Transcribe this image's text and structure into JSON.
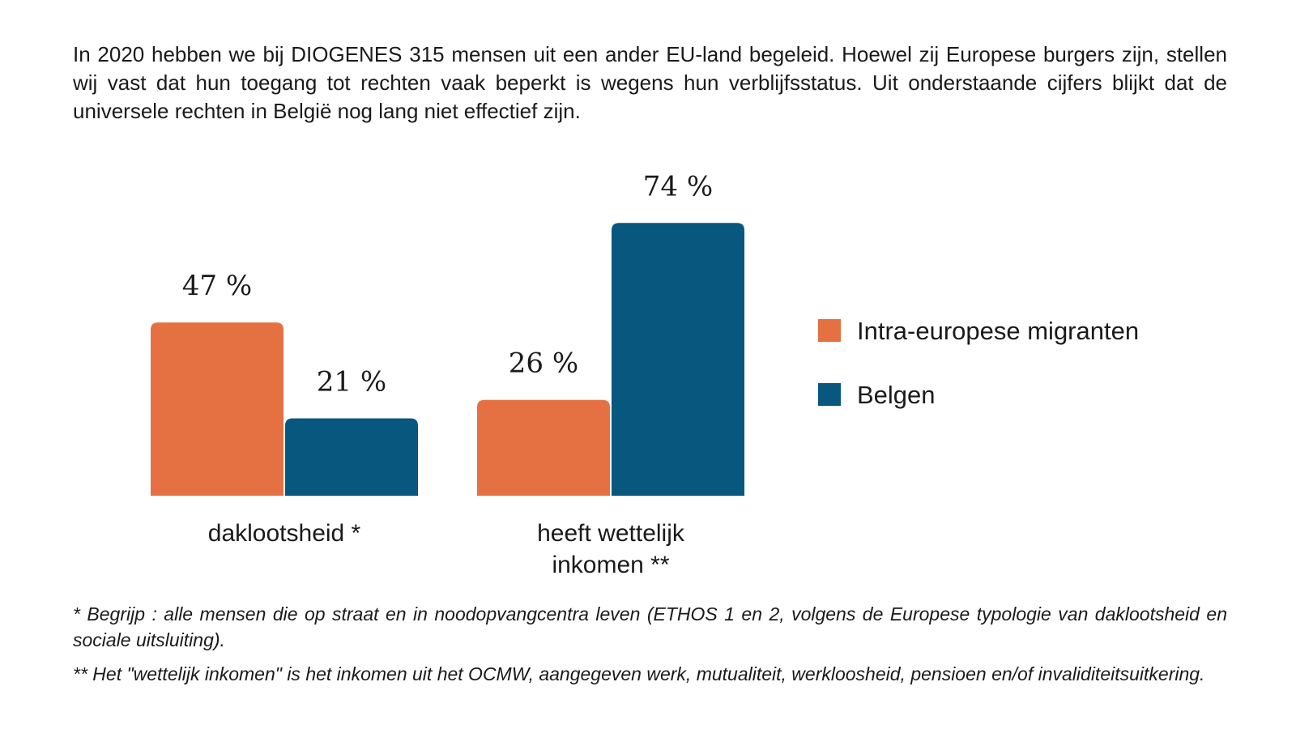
{
  "intro_text": "In 2020 hebben we bij DIOGENES 315 mensen uit een ander EU-land begeleid. Hoewel zij Europese burgers zijn, stellen wij vast dat hun toegang tot rechten vaak beperkt is wegens hun verblijfsstatus. Uit onderstaande cijfers blijkt dat de universele rechten in België nog lang niet effectief zijn.",
  "chart_data": {
    "type": "bar",
    "categories": [
      "daklootsheid *",
      "heeft wettelijk inkomen **"
    ],
    "category_lines": [
      [
        "daklootsheid *"
      ],
      [
        "heeft wettelijk",
        "inkomen **"
      ]
    ],
    "series": [
      {
        "name": "Intra-europese migranten",
        "values": [
          47,
          26
        ],
        "labels": [
          "47 %",
          "26 %"
        ],
        "color": "#e57142"
      },
      {
        "name": "Belgen",
        "values": [
          21,
          74
        ],
        "labels": [
          "21 %",
          "74 %"
        ],
        "color": "#07577f"
      }
    ],
    "unit": "%",
    "ylim": [
      0,
      100
    ],
    "legend_position": "right",
    "grid": false
  },
  "footnotes": [
    "* Begrijp : alle mensen die op straat en in noodopvangcentra leven (ETHOS 1 en 2, volgens de Europese typologie van daklootsheid en sociale uitsluiting).",
    "** Het \"wettelijk inkomen\" is het inkomen uit het OCMW, aangegeven werk, mutualiteit, werkloosheid, pensioen en/of invaliditeitsuitkering."
  ]
}
